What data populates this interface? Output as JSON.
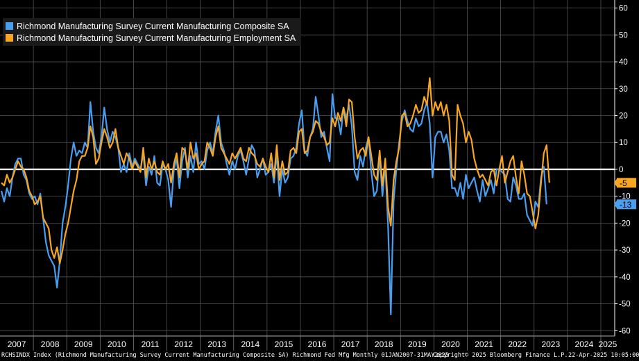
{
  "legend": [
    {
      "label": "Richmond Manufacturing Survey Current Manufacturing Composite SA",
      "color": "#4a9eef"
    },
    {
      "label": "Richmond Manufacturing Survey Current Manufacturing Employment SA",
      "color": "#f6a623"
    }
  ],
  "footer": {
    "source": "RCHSINDX Index (Richmond Manufacturing Survey Current Manufacturing Composite SA) Richmond Fed Mfg  Monthly 01JAN2007-31MAY2025",
    "copyright": "Copyright© 2025 Bloomberg Finance L.P.",
    "timestamp": "22-Apr-2025 10:05:00"
  },
  "chart_data": {
    "type": "line",
    "x_start": "2007-01",
    "x_end": "2025-05",
    "ylim": [
      -62,
      63
    ],
    "yticks": [
      -60,
      -50,
      -40,
      -30,
      -20,
      -10,
      0,
      10,
      20,
      30,
      40,
      50,
      60
    ],
    "year_labels": [
      "2007",
      "2008",
      "2009",
      "2010",
      "2011",
      "2012",
      "2013",
      "2014",
      "2015",
      "2016",
      "2017",
      "2018",
      "2019",
      "2020",
      "2021",
      "2022",
      "2023",
      "2024",
      "2025"
    ],
    "zero_line": 0,
    "grid": true,
    "legend_position": "top-left",
    "series": [
      {
        "name": "Richmond Manufacturing Survey Current Manufacturing Composite SA",
        "color": "#4a9eef",
        "last_value": -13,
        "values": [
          -8,
          -12,
          -7,
          -10,
          -3,
          2,
          4,
          4,
          -2,
          -4,
          -9,
          -11,
          -10,
          -13,
          -9,
          -18,
          -27,
          -32,
          -34,
          -36,
          -44,
          -34,
          -20,
          -14,
          -6,
          4,
          10,
          5,
          7,
          6,
          10,
          8,
          25,
          14,
          8,
          6,
          12,
          23,
          15,
          10,
          14,
          12,
          8,
          -1,
          2,
          -1,
          6,
          1,
          4,
          2,
          0,
          6,
          -6,
          1,
          -2,
          5,
          -5,
          -6,
          2,
          0,
          -4,
          -14,
          0,
          4,
          -7,
          3,
          8,
          -3,
          5,
          -1,
          10,
          2,
          3,
          0,
          7,
          10,
          6,
          14,
          20,
          10,
          7,
          2,
          -2,
          3,
          0,
          5,
          7,
          3,
          -2,
          4,
          9,
          7,
          -3,
          0,
          4,
          -2,
          -1,
          2,
          -5,
          6,
          -10,
          0,
          -5,
          -3,
          4,
          5,
          8,
          17,
          22,
          7,
          5,
          12,
          15,
          27,
          20,
          12,
          14,
          8,
          3,
          28,
          19,
          19,
          13,
          23,
          19,
          24,
          16,
          -1,
          -4,
          5,
          1,
          8,
          12,
          -1,
          -10,
          -8,
          5,
          -10,
          2,
          -21,
          -54,
          -12,
          0,
          10,
          18,
          22,
          18,
          15,
          14,
          19,
          16,
          17,
          22,
          25,
          17,
          -3,
          12,
          14,
          14,
          10,
          13,
          7,
          -7,
          -7,
          -10,
          -5,
          -11,
          -2,
          -7,
          -5,
          -3,
          -8,
          -12,
          -4,
          -10,
          -7,
          -4,
          -9,
          0,
          0,
          -1,
          -2,
          -11,
          -12,
          -3,
          -6,
          -11,
          -11,
          -9,
          -17,
          -19,
          -21,
          -12,
          -14,
          -3,
          1,
          -13
        ]
      },
      {
        "name": "Richmond Manufacturing Survey Current Manufacturing Employment SA",
        "color": "#f6a623",
        "last_value": -5,
        "values": [
          -5,
          -6,
          -2,
          -5,
          -3,
          0,
          3,
          1,
          0,
          -3,
          -8,
          -10,
          -13,
          -12,
          -10,
          -18,
          -20,
          -22,
          -30,
          -33,
          -29,
          -35,
          -30,
          -24,
          -20,
          -14,
          -8,
          -4,
          3,
          5,
          5,
          8,
          16,
          12,
          2,
          4,
          10,
          15,
          12,
          8,
          10,
          15,
          8,
          5,
          2,
          6,
          4,
          0,
          3,
          1,
          -1,
          8,
          -3,
          4,
          0,
          3,
          -1,
          -2,
          3,
          0,
          2,
          -5,
          2,
          6,
          -3,
          8,
          7,
          0,
          10,
          4,
          6,
          0,
          2,
          3,
          10,
          8,
          5,
          12,
          16,
          8,
          6,
          4,
          2,
          6,
          4,
          6,
          8,
          4,
          3,
          8,
          6,
          5,
          2,
          1,
          4,
          1,
          -1,
          6,
          -3,
          9,
          -4,
          3,
          -2,
          -1,
          7,
          8,
          6,
          14,
          15,
          6,
          7,
          12,
          14,
          18,
          17,
          14,
          12,
          9,
          10,
          19,
          16,
          21,
          18,
          23,
          16,
          26,
          25,
          12,
          4,
          7,
          8,
          5,
          12,
          5,
          -2,
          -4,
          7,
          -6,
          4,
          -14,
          -21,
          -4,
          3,
          8,
          20,
          21,
          16,
          17,
          20,
          24,
          21,
          22,
          27,
          24,
          34,
          20,
          25,
          22,
          25,
          20,
          24,
          18,
          -2,
          -4,
          24,
          20,
          17,
          10,
          14,
          11,
          4,
          0,
          -3,
          -2,
          -4,
          -6,
          -1,
          0,
          -6,
          0,
          5,
          -5,
          -1,
          3,
          5,
          -3,
          -9,
          3,
          -2,
          -9,
          -10,
          -16,
          -22,
          -17,
          -5,
          6,
          9,
          -5
        ]
      }
    ]
  }
}
